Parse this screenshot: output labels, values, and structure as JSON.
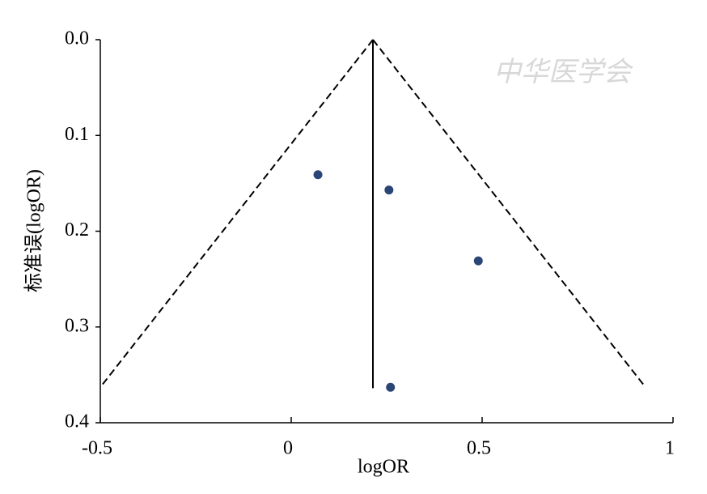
{
  "chart_data": {
    "type": "scatter",
    "xlabel": "logOR",
    "ylabel": "标准误(logOR)",
    "watermark": "中华医学会",
    "xlim": [
      -0.5,
      1
    ],
    "ylim": [
      0,
      0.4
    ],
    "y_inverted": true,
    "xticks": [
      -0.5,
      0,
      0.5,
      1
    ],
    "yticks": [
      {
        "value": 0,
        "label": "0.0"
      },
      0.1,
      0.2,
      0.3,
      0.4
    ],
    "series": [
      {
        "color": "#2b4676",
        "x": [
          0.07,
          0.256,
          0.49,
          0.26
        ],
        "y": [
          0.141,
          0.157,
          0.231,
          0.363
        ]
      }
    ],
    "lines": [
      {
        "style": "dashed",
        "x": [
          0.214,
          -0.5
        ],
        "y": [
          0,
          0.363
        ]
      },
      {
        "style": "dashed",
        "x": [
          0.214,
          0.928
        ],
        "y": [
          0,
          0.363
        ]
      },
      {
        "style": "solid",
        "x": [
          0.214,
          0.214
        ],
        "y": [
          0,
          0.364
        ]
      }
    ]
  }
}
